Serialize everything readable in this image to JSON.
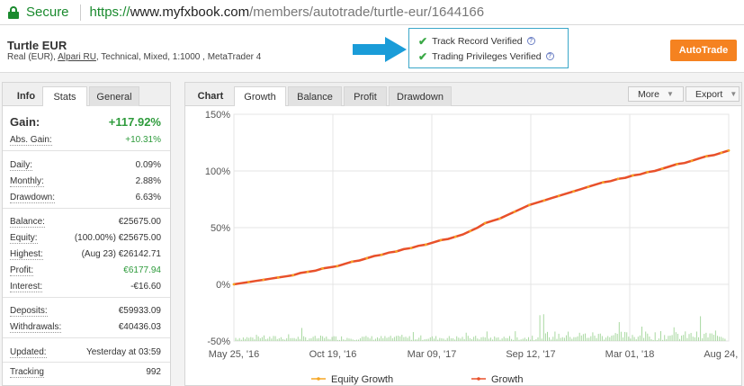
{
  "browser": {
    "secure_label": "Secure",
    "url_proto": "https://",
    "url_host": "www.myfxbook.com",
    "url_path": "/members/autotrade/turtle-eur/1644166"
  },
  "system": {
    "name": "Turtle EUR",
    "sub_prefix": "Real (EUR), ",
    "broker": "Alpari RU",
    "sub_suffix": ", Technical, Mixed, 1:1000 , MetaTrader 4"
  },
  "verification": {
    "track_record": "Track Record Verified",
    "trading_privileges": "Trading Privileges Verified",
    "help_glyph": "?"
  },
  "autotrade_label": "AutoTrade",
  "left_tabs": {
    "info": "Info",
    "stats": "Stats",
    "general": "General"
  },
  "stats": {
    "gain": {
      "label": "Gain:",
      "value": "+117.92%"
    },
    "abs_gain": {
      "label": "Abs. Gain:",
      "value": "+10.31%"
    },
    "daily": {
      "label": "Daily:",
      "value": "0.09%"
    },
    "monthly": {
      "label": "Monthly:",
      "value": "2.88%"
    },
    "drawdown": {
      "label": "Drawdown:",
      "value": "6.63%"
    },
    "balance": {
      "label": "Balance:",
      "value": "€25675.00"
    },
    "equity": {
      "label": "Equity:",
      "value": "(100.00%) €25675.00"
    },
    "highest": {
      "label": "Highest:",
      "value": "(Aug 23) €26142.71"
    },
    "profit": {
      "label": "Profit:",
      "value": "€6177.94"
    },
    "interest": {
      "label": "Interest:",
      "value": "-€16.60"
    },
    "deposits": {
      "label": "Deposits:",
      "value": "€59933.09"
    },
    "withdrawals": {
      "label": "Withdrawals:",
      "value": "€40436.03"
    },
    "updated": {
      "label": "Updated:",
      "value": "Yesterday at 03:59"
    },
    "tracking": {
      "label": "Tracking",
      "value": "992"
    }
  },
  "chart_tabs": {
    "title": "Chart",
    "growth": "Growth",
    "balance": "Balance",
    "profit": "Profit",
    "drawdown": "Drawdown"
  },
  "chart_menu": {
    "more": "More",
    "export": "Export"
  },
  "colors": {
    "growth": "#e8502a",
    "equity": "#f5a623",
    "bars": "#a8d8a0",
    "accent": "#f58220",
    "verify_border": "#3aa7c9"
  },
  "chart_data": {
    "type": "line",
    "x_tick_labels": [
      "May 25, '16",
      "Oct 19, '16",
      "Mar 09, '17",
      "Sep 12, '17",
      "Mar 01, '18",
      "Aug 24, '18"
    ],
    "y_tick_labels": [
      "150%",
      "100%",
      "50%",
      "0%",
      "-50%"
    ],
    "ylim": [
      -50,
      150
    ],
    "grid": true,
    "legend_position": "bottom",
    "series": [
      {
        "name": "Equity Growth",
        "points": [
          [
            0,
            0
          ],
          [
            20,
            2
          ],
          [
            40,
            4
          ],
          [
            60,
            6
          ],
          [
            80,
            8
          ],
          [
            100,
            11
          ],
          [
            120,
            14
          ],
          [
            140,
            16
          ],
          [
            160,
            20
          ],
          [
            180,
            23
          ],
          [
            200,
            26
          ],
          [
            220,
            29
          ],
          [
            240,
            32
          ],
          [
            260,
            35
          ],
          [
            280,
            39
          ],
          [
            300,
            42
          ],
          [
            320,
            47
          ],
          [
            340,
            54
          ],
          [
            360,
            58
          ],
          [
            380,
            64
          ],
          [
            400,
            70
          ],
          [
            420,
            74
          ],
          [
            440,
            78
          ],
          [
            460,
            82
          ],
          [
            480,
            86
          ],
          [
            500,
            90
          ],
          [
            520,
            93
          ],
          [
            540,
            96
          ],
          [
            560,
            99
          ],
          [
            580,
            102
          ],
          [
            600,
            106
          ],
          [
            620,
            109
          ],
          [
            640,
            113
          ],
          [
            660,
            116
          ],
          [
            670,
            118
          ]
        ]
      },
      {
        "name": "Growth",
        "points": [
          [
            0,
            0
          ],
          [
            10,
            1
          ],
          [
            20,
            2
          ],
          [
            30,
            3
          ],
          [
            40,
            4
          ],
          [
            50,
            5
          ],
          [
            60,
            6
          ],
          [
            70,
            7
          ],
          [
            80,
            8
          ],
          [
            90,
            10
          ],
          [
            100,
            11
          ],
          [
            110,
            12
          ],
          [
            120,
            14
          ],
          [
            130,
            15
          ],
          [
            140,
            16
          ],
          [
            150,
            18
          ],
          [
            160,
            20
          ],
          [
            170,
            21
          ],
          [
            180,
            23
          ],
          [
            190,
            25
          ],
          [
            200,
            26
          ],
          [
            210,
            28
          ],
          [
            220,
            29
          ],
          [
            230,
            31
          ],
          [
            240,
            32
          ],
          [
            250,
            34
          ],
          [
            260,
            35
          ],
          [
            270,
            37
          ],
          [
            280,
            39
          ],
          [
            290,
            40
          ],
          [
            300,
            42
          ],
          [
            310,
            44
          ],
          [
            320,
            47
          ],
          [
            330,
            50
          ],
          [
            340,
            54
          ],
          [
            350,
            56
          ],
          [
            360,
            58
          ],
          [
            370,
            61
          ],
          [
            380,
            64
          ],
          [
            390,
            67
          ],
          [
            400,
            70
          ],
          [
            410,
            72
          ],
          [
            420,
            74
          ],
          [
            430,
            76
          ],
          [
            440,
            78
          ],
          [
            450,
            80
          ],
          [
            460,
            82
          ],
          [
            470,
            84
          ],
          [
            480,
            86
          ],
          [
            490,
            88
          ],
          [
            500,
            90
          ],
          [
            510,
            91
          ],
          [
            520,
            93
          ],
          [
            530,
            94
          ],
          [
            540,
            96
          ],
          [
            550,
            97
          ],
          [
            560,
            99
          ],
          [
            570,
            100
          ],
          [
            580,
            102
          ],
          [
            590,
            104
          ],
          [
            600,
            106
          ],
          [
            610,
            107
          ],
          [
            620,
            109
          ],
          [
            630,
            111
          ],
          [
            640,
            113
          ],
          [
            650,
            114
          ],
          [
            660,
            116
          ],
          [
            670,
            118
          ]
        ]
      }
    ]
  },
  "legend": {
    "equity": "Equity Growth",
    "growth": "Growth"
  }
}
